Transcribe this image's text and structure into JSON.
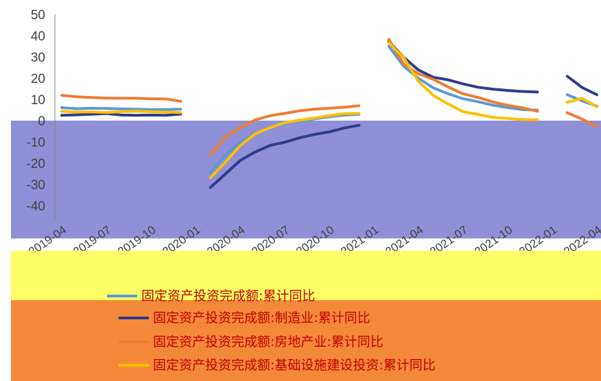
{
  "chart_data": {
    "type": "line",
    "title": "",
    "xlabel": "",
    "ylabel": "",
    "ylim": [
      -50,
      50
    ],
    "yticks": [
      50,
      40,
      30,
      20,
      10,
      0,
      -10,
      -20,
      -30,
      -40
    ],
    "ytick_labels": [
      "50",
      "40",
      "30",
      "20",
      "10",
      "0",
      "-10",
      "-20",
      "-30",
      "-40"
    ],
    "x": [
      "2019-04",
      "2019-05",
      "2019-06",
      "2019-07",
      "2019-08",
      "2019-09",
      "2019-10",
      "2019-11",
      "2019-12",
      "2020-01",
      "2020-02",
      "2020-03",
      "2020-04",
      "2020-05",
      "2020-06",
      "2020-07",
      "2020-08",
      "2020-09",
      "2020-10",
      "2020-11",
      "2020-12",
      "2021-01",
      "2021-02",
      "2021-03",
      "2021-04",
      "2021-05",
      "2021-06",
      "2021-07",
      "2021-08",
      "2021-09",
      "2021-10",
      "2021-11",
      "2021-12",
      "2022-01",
      "2022-02",
      "2022-03",
      "2022-04"
    ],
    "x_tick_labels": [
      "2019-04",
      "2019-07",
      "2019-10",
      "2020-01",
      "2020-04",
      "2020-07",
      "2020-10",
      "2021-01",
      "2021-04",
      "2021-07",
      "2021-10",
      "2022-01",
      "2022-04"
    ],
    "grid": false,
    "legend_position": "bottom",
    "plot_background": "#9090d8",
    "series": [
      {
        "name": "固定资产投资完成额:累计同比",
        "color": "#5b9bd5",
        "values": [
          6.1,
          5.6,
          5.8,
          5.7,
          5.5,
          5.4,
          5.2,
          5.2,
          5.4,
          null,
          -24.5,
          -16.1,
          -10.3,
          -6.3,
          -3.1,
          -1.6,
          -0.3,
          0.8,
          1.8,
          2.6,
          2.9,
          null,
          35.0,
          25.6,
          19.9,
          15.4,
          12.6,
          10.3,
          8.9,
          7.3,
          6.1,
          5.2,
          4.9,
          null,
          12.2,
          9.3,
          6.8
        ]
      },
      {
        "name": "固定资产投资完成额:制造业:累计同比",
        "color": "#2f3b8a",
        "values": [
          2.5,
          2.7,
          3.0,
          3.3,
          2.6,
          2.5,
          2.6,
          2.5,
          3.1,
          null,
          -31.5,
          -25.2,
          -18.8,
          -14.8,
          -11.7,
          -10.2,
          -8.1,
          -6.5,
          -5.3,
          -3.5,
          -2.2,
          null,
          37.3,
          29.8,
          23.8,
          20.4,
          19.2,
          17.3,
          15.7,
          14.8,
          14.2,
          13.7,
          13.5,
          null,
          20.9,
          15.6,
          12.2
        ]
      },
      {
        "name": "固定资产投资完成额:房地产业:累计同比",
        "color": "#ed7d31",
        "values": [
          11.9,
          11.2,
          10.9,
          10.6,
          10.5,
          10.5,
          10.3,
          10.2,
          9.1,
          null,
          -16.3,
          -7.7,
          -3.3,
          0.3,
          2.3,
          3.4,
          4.6,
          5.4,
          5.8,
          6.3,
          7.0,
          null,
          38.3,
          26.6,
          22.0,
          19.4,
          15.8,
          12.6,
          10.9,
          8.8,
          7.2,
          6.0,
          4.4,
          null,
          3.7,
          0.7,
          -2.7
        ]
      },
      {
        "name": "固定资产投资完成额:基础设施建设投资:累计同比",
        "color": "#ffc000",
        "values": [
          4.4,
          4.0,
          4.1,
          3.8,
          4.2,
          4.5,
          4.2,
          4.0,
          3.8,
          null,
          -26.9,
          -19.7,
          -11.8,
          -6.3,
          -3.3,
          -1.0,
          0.2,
          1.2,
          2.4,
          3.3,
          3.4,
          null,
          36.6,
          29.7,
          18.4,
          11.8,
          7.8,
          4.2,
          2.9,
          1.5,
          1.0,
          0.5,
          0.4,
          null,
          8.6,
          10.5,
          6.5
        ]
      }
    ]
  }
}
